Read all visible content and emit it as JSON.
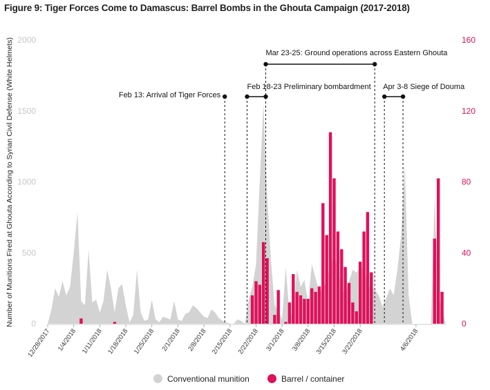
{
  "title": "Figure 9: Tiger Forces Come to Damascus: Barrel Bombs in the Ghouta Campaign (2017-2018)",
  "colors": {
    "conventional": "#d3d3d3",
    "barrel": "#e0105a",
    "axis_left": "#c6c6c6",
    "axis_right": "#e0105a",
    "annotation": "#111111"
  },
  "chart_data": {
    "type": "area",
    "title": "Figure 9: Tiger Forces Come to Damascus: Barrel Bombs in the Ghouta Campaign (2017-2018)",
    "ylabel": "Number of Munitions Fired at Ghouta According to Syrian Civil Defense (White Helmets)",
    "ylabel_right": "",
    "ylim": [
      0,
      2000
    ],
    "ylim_right": [
      0,
      160
    ],
    "yticks": [
      "0",
      "500",
      "1000",
      "1500",
      "2000"
    ],
    "yticks_right": [
      "0",
      "40",
      "80",
      "120",
      "160"
    ],
    "x_start": "12/28/2017",
    "x_end": "4/9/2018",
    "xticks": [
      "12/28/2017",
      "1/4/2018",
      "1/11/2018",
      "1/18/2018",
      "1/25/2018",
      "2/1/2018",
      "2/8/2018",
      "2/15/2018",
      "2/22/2018",
      "3/1/2018",
      "3/8/2018",
      "3/15/2018",
      "3/22/2018",
      "4/6/2018"
    ],
    "series": [
      {
        "name": "Conventional munition",
        "type": "area",
        "axis": "left",
        "points": [
          [
            0,
            0
          ],
          [
            1,
            100
          ],
          [
            2,
            250
          ],
          [
            3,
            190
          ],
          [
            4,
            300
          ],
          [
            5,
            200
          ],
          [
            6,
            260
          ],
          [
            7,
            500
          ],
          [
            8,
            790
          ],
          [
            9,
            160
          ],
          [
            10,
            130
          ],
          [
            11,
            520
          ],
          [
            12,
            150
          ],
          [
            13,
            170
          ],
          [
            14,
            80
          ],
          [
            15,
            160
          ],
          [
            16,
            380
          ],
          [
            17,
            250
          ],
          [
            18,
            80
          ],
          [
            19,
            250
          ],
          [
            20,
            280
          ],
          [
            21,
            130
          ],
          [
            22,
            10
          ],
          [
            23,
            60
          ],
          [
            24,
            380
          ],
          [
            25,
            80
          ],
          [
            26,
            20
          ],
          [
            27,
            30
          ],
          [
            28,
            170
          ],
          [
            29,
            30
          ],
          [
            30,
            10
          ],
          [
            31,
            50
          ],
          [
            32,
            40
          ],
          [
            33,
            30
          ],
          [
            34,
            160
          ],
          [
            35,
            30
          ],
          [
            36,
            20
          ],
          [
            37,
            70
          ],
          [
            38,
            80
          ],
          [
            39,
            130
          ],
          [
            40,
            110
          ],
          [
            41,
            80
          ],
          [
            42,
            50
          ],
          [
            43,
            40
          ],
          [
            44,
            100
          ],
          [
            45,
            80
          ],
          [
            46,
            40
          ],
          [
            47,
            20
          ],
          [
            48,
            10
          ],
          [
            49,
            0
          ],
          [
            50,
            0
          ],
          [
            51,
            30
          ],
          [
            52,
            20
          ],
          [
            53,
            0
          ],
          [
            54,
            170
          ],
          [
            55,
            260
          ],
          [
            56,
            420
          ],
          [
            57,
            1000
          ],
          [
            58,
            1550
          ],
          [
            59,
            900
          ],
          [
            60,
            450
          ],
          [
            61,
            130
          ],
          [
            62,
            90
          ],
          [
            63,
            30
          ],
          [
            64,
            400
          ],
          [
            65,
            60
          ],
          [
            66,
            60
          ],
          [
            67,
            380
          ],
          [
            68,
            260
          ],
          [
            69,
            310
          ],
          [
            70,
            150
          ],
          [
            71,
            420
          ],
          [
            72,
            320
          ],
          [
            73,
            230
          ],
          [
            74,
            240
          ],
          [
            75,
            320
          ],
          [
            76,
            400
          ],
          [
            77,
            500
          ],
          [
            78,
            380
          ],
          [
            79,
            250
          ],
          [
            80,
            200
          ],
          [
            81,
            300
          ],
          [
            82,
            380
          ],
          [
            83,
            360
          ],
          [
            84,
            400
          ],
          [
            85,
            380
          ],
          [
            86,
            280
          ],
          [
            87,
            250
          ],
          [
            88,
            240
          ],
          [
            89,
            200
          ],
          [
            90,
            120
          ],
          [
            91,
            180
          ],
          [
            92,
            250
          ],
          [
            93,
            200
          ],
          [
            94,
            380
          ],
          [
            95,
            620
          ],
          [
            96,
            1120
          ],
          [
            97,
            200
          ],
          [
            98,
            0
          ],
          [
            99,
            0
          ],
          [
            100,
            0
          ],
          [
            101,
            0
          ],
          [
            102,
            0
          ],
          [
            103,
            0
          ],
          [
            104,
            880
          ],
          [
            105,
            200
          ],
          [
            106,
            100
          ],
          [
            107,
            0
          ]
        ]
      },
      {
        "name": "Barrel / container",
        "type": "bar",
        "axis": "right",
        "points": [
          [
            9,
            3
          ],
          [
            18,
            1
          ],
          [
            55,
            16
          ],
          [
            56,
            24
          ],
          [
            57,
            22
          ],
          [
            58,
            46
          ],
          [
            59,
            37
          ],
          [
            61,
            5
          ],
          [
            62,
            19
          ],
          [
            64,
            1
          ],
          [
            65,
            12
          ],
          [
            66,
            28
          ],
          [
            67,
            18
          ],
          [
            68,
            16
          ],
          [
            69,
            14
          ],
          [
            70,
            14
          ],
          [
            71,
            20
          ],
          [
            72,
            18
          ],
          [
            73,
            21
          ],
          [
            74,
            68
          ],
          [
            75,
            50
          ],
          [
            76,
            108
          ],
          [
            77,
            82
          ],
          [
            78,
            52
          ],
          [
            79,
            42
          ],
          [
            80,
            32
          ],
          [
            81,
            23
          ],
          [
            82,
            12
          ],
          [
            83,
            7
          ],
          [
            84,
            35
          ],
          [
            85,
            52
          ],
          [
            86,
            63
          ],
          [
            87,
            29
          ],
          [
            104,
            48
          ],
          [
            105,
            82
          ],
          [
            106,
            18
          ]
        ]
      }
    ],
    "annotations": [
      {
        "text": "Feb 13: Arrival of Tiger Forces",
        "type": "line",
        "x": 47.6
      },
      {
        "text": "Feb 18-23 Preliminary bombardment",
        "type": "range",
        "x_from": 53.6,
        "x_to": 58.6
      },
      {
        "text": "Mar 23-25: Ground operations across Eastern Ghouta",
        "type": "range",
        "x_from": 58.6,
        "x_to": 87.9
      },
      {
        "text": "Apr 3-8 Siege of Douma",
        "type": "range",
        "x_from": 90.5,
        "x_to": 95.5
      }
    ],
    "legend": [
      "Conventional munition",
      "Barrel / container"
    ],
    "legend_position": "bottom",
    "grid": false
  }
}
